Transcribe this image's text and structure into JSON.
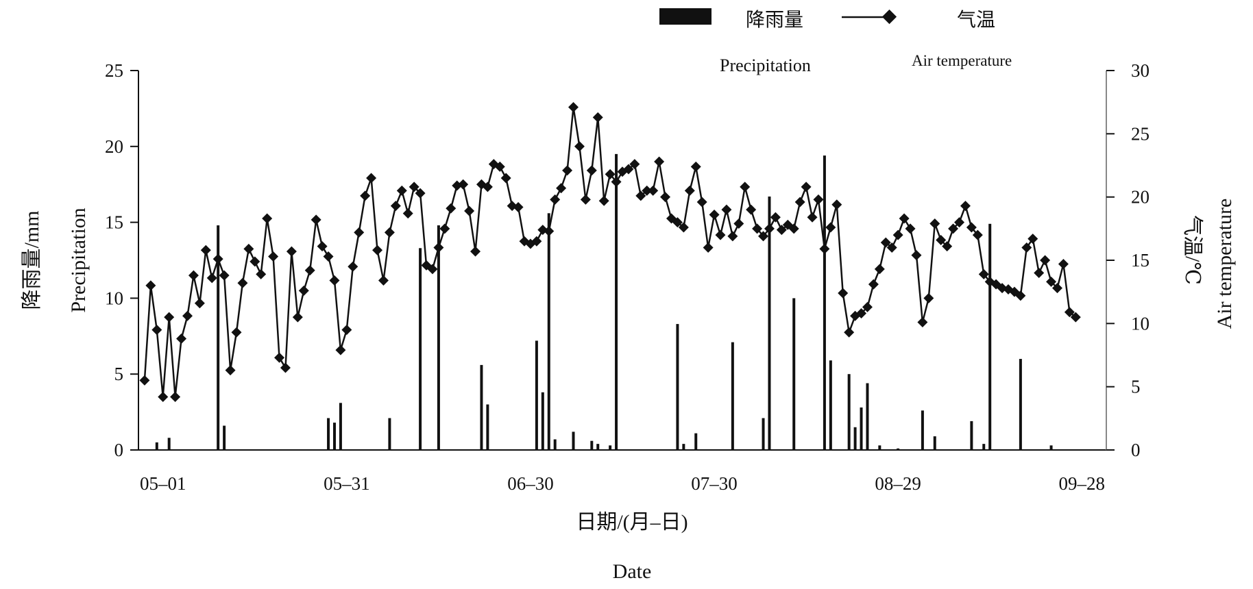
{
  "chart_data": {
    "type": "bar+line",
    "title": "",
    "legend": {
      "placement": "top-right",
      "items": [
        {
          "marker": "bar",
          "label": "降雨量",
          "sublabel": "Precipitation",
          "color": "#111111"
        },
        {
          "marker": "line-diamond",
          "label": "气温",
          "sublabel": "Air temperature",
          "color": "#111111"
        }
      ]
    },
    "x_axis": {
      "label": "日期/(月–日)",
      "label_en": "Date",
      "start": "04-27",
      "end": "09-30",
      "ticks": [
        {
          "day": 4,
          "label": "05–01"
        },
        {
          "day": 34,
          "label": "05–31"
        },
        {
          "day": 64,
          "label": "06–30"
        },
        {
          "day": 94,
          "label": "07–30"
        },
        {
          "day": 124,
          "label": "08–29"
        },
        {
          "day": 154,
          "label": "09–28"
        }
      ]
    },
    "y_left": {
      "label": "降雨量/mm",
      "label_en": "Precipitation",
      "lim": [
        0,
        25
      ],
      "ticks": [
        0,
        5,
        10,
        15,
        20,
        25
      ]
    },
    "y_right": {
      "label": "气温/℃",
      "label_en": "Air temperature",
      "lim": [
        0,
        30
      ],
      "ticks": [
        0,
        5,
        10,
        15,
        20,
        25,
        30
      ]
    },
    "series": [
      {
        "name": "降雨量",
        "kind": "bar",
        "axis": "left",
        "points": [
          [
            3,
            0.5
          ],
          [
            5,
            0.8
          ],
          [
            13,
            14.8
          ],
          [
            14,
            1.6
          ],
          [
            31,
            2.1
          ],
          [
            32,
            1.8
          ],
          [
            33,
            3.1
          ],
          [
            41,
            2.1
          ],
          [
            46,
            13.3
          ],
          [
            49,
            14.8
          ],
          [
            56,
            5.6
          ],
          [
            57,
            3.0
          ],
          [
            65,
            7.2
          ],
          [
            66,
            3.8
          ],
          [
            67,
            15.6
          ],
          [
            68,
            0.7
          ],
          [
            71,
            1.2
          ],
          [
            74,
            0.6
          ],
          [
            75,
            0.4
          ],
          [
            77,
            0.3
          ],
          [
            78,
            19.5
          ],
          [
            88,
            8.3
          ],
          [
            89,
            0.4
          ],
          [
            91,
            1.1
          ],
          [
            97,
            7.1
          ],
          [
            102,
            2.1
          ],
          [
            103,
            16.7
          ],
          [
            107,
            10.0
          ],
          [
            112,
            19.4
          ],
          [
            113,
            5.9
          ],
          [
            116,
            5.0
          ],
          [
            117,
            1.5
          ],
          [
            118,
            2.8
          ],
          [
            119,
            4.4
          ],
          [
            121,
            0.3
          ],
          [
            124,
            0.1
          ],
          [
            128,
            2.6
          ],
          [
            130,
            0.9
          ],
          [
            136,
            1.9
          ],
          [
            138,
            0.4
          ],
          [
            139,
            14.9
          ],
          [
            144,
            6.0
          ],
          [
            149,
            0.3
          ]
        ]
      },
      {
        "name": "气温",
        "kind": "line",
        "axis": "right",
        "points": [
          [
            1,
            5.5
          ],
          [
            2,
            13.0
          ],
          [
            3,
            9.5
          ],
          [
            4,
            4.2
          ],
          [
            5,
            10.5
          ],
          [
            6,
            4.2
          ],
          [
            7,
            8.8
          ],
          [
            8,
            10.6
          ],
          [
            9,
            13.8
          ],
          [
            10,
            11.6
          ],
          [
            11,
            15.8
          ],
          [
            12,
            13.6
          ],
          [
            13,
            15.1
          ],
          [
            14,
            13.8
          ],
          [
            15,
            6.3
          ],
          [
            16,
            9.3
          ],
          [
            17,
            13.2
          ],
          [
            18,
            15.9
          ],
          [
            19,
            14.9
          ],
          [
            20,
            13.9
          ],
          [
            21,
            18.3
          ],
          [
            22,
            15.3
          ],
          [
            23,
            7.3
          ],
          [
            24,
            6.5
          ],
          [
            25,
            15.7
          ],
          [
            26,
            10.5
          ],
          [
            27,
            12.6
          ],
          [
            28,
            14.2
          ],
          [
            29,
            18.2
          ],
          [
            30,
            16.1
          ],
          [
            31,
            15.3
          ],
          [
            32,
            13.4
          ],
          [
            33,
            7.9
          ],
          [
            34,
            9.5
          ],
          [
            35,
            14.5
          ],
          [
            36,
            17.2
          ],
          [
            37,
            20.1
          ],
          [
            38,
            21.5
          ],
          [
            39,
            15.8
          ],
          [
            40,
            13.4
          ],
          [
            41,
            17.2
          ],
          [
            42,
            19.3
          ],
          [
            43,
            20.5
          ],
          [
            44,
            18.7
          ],
          [
            45,
            20.8
          ],
          [
            46,
            20.3
          ],
          [
            47,
            14.6
          ],
          [
            48,
            14.3
          ],
          [
            49,
            16.0
          ],
          [
            50,
            17.5
          ],
          [
            51,
            19.1
          ],
          [
            52,
            20.9
          ],
          [
            53,
            21.0
          ],
          [
            54,
            18.9
          ],
          [
            55,
            15.7
          ],
          [
            56,
            21.0
          ],
          [
            57,
            20.8
          ],
          [
            58,
            22.6
          ],
          [
            59,
            22.4
          ],
          [
            60,
            21.5
          ],
          [
            61,
            19.3
          ],
          [
            62,
            19.2
          ],
          [
            63,
            16.5
          ],
          [
            64,
            16.3
          ],
          [
            65,
            16.5
          ],
          [
            66,
            17.4
          ],
          [
            67,
            17.3
          ],
          [
            68,
            19.8
          ],
          [
            69,
            20.7
          ],
          [
            70,
            22.1
          ],
          [
            71,
            27.1
          ],
          [
            72,
            24.0
          ],
          [
            73,
            19.8
          ],
          [
            74,
            22.1
          ],
          [
            75,
            26.3
          ],
          [
            76,
            19.7
          ],
          [
            77,
            21.8
          ],
          [
            78,
            21.2
          ],
          [
            79,
            22.0
          ],
          [
            80,
            22.2
          ],
          [
            81,
            22.6
          ],
          [
            82,
            20.1
          ],
          [
            83,
            20.5
          ],
          [
            84,
            20.5
          ],
          [
            85,
            22.8
          ],
          [
            86,
            20.0
          ],
          [
            87,
            18.3
          ],
          [
            88,
            18.0
          ],
          [
            89,
            17.6
          ],
          [
            90,
            20.5
          ],
          [
            91,
            22.4
          ],
          [
            92,
            19.6
          ],
          [
            93,
            16.0
          ],
          [
            94,
            18.6
          ],
          [
            95,
            17.0
          ],
          [
            96,
            19.0
          ],
          [
            97,
            16.9
          ],
          [
            98,
            17.9
          ],
          [
            99,
            20.8
          ],
          [
            100,
            19.0
          ],
          [
            101,
            17.5
          ],
          [
            102,
            16.9
          ],
          [
            103,
            17.5
          ],
          [
            104,
            18.4
          ],
          [
            105,
            17.4
          ],
          [
            106,
            17.8
          ],
          [
            107,
            17.5
          ],
          [
            108,
            19.6
          ],
          [
            109,
            20.8
          ],
          [
            110,
            18.4
          ],
          [
            111,
            19.8
          ],
          [
            112,
            15.9
          ],
          [
            113,
            17.6
          ],
          [
            114,
            19.4
          ],
          [
            115,
            12.4
          ],
          [
            116,
            9.3
          ],
          [
            117,
            10.6
          ],
          [
            118,
            10.8
          ],
          [
            119,
            11.3
          ],
          [
            120,
            13.1
          ],
          [
            121,
            14.3
          ],
          [
            122,
            16.4
          ],
          [
            123,
            16.0
          ],
          [
            124,
            17.0
          ],
          [
            125,
            18.3
          ],
          [
            126,
            17.5
          ],
          [
            127,
            15.4
          ],
          [
            128,
            10.1
          ],
          [
            129,
            12.0
          ],
          [
            130,
            17.9
          ],
          [
            131,
            16.6
          ],
          [
            132,
            16.1
          ],
          [
            133,
            17.5
          ],
          [
            134,
            18.0
          ],
          [
            135,
            19.3
          ],
          [
            136,
            17.6
          ],
          [
            137,
            17.0
          ],
          [
            138,
            13.9
          ],
          [
            139,
            13.3
          ],
          [
            140,
            13.1
          ],
          [
            141,
            12.8
          ],
          [
            142,
            12.7
          ],
          [
            143,
            12.5
          ],
          [
            144,
            12.2
          ],
          [
            145,
            16.0
          ],
          [
            146,
            16.7
          ],
          [
            147,
            14.0
          ],
          [
            148,
            15.0
          ],
          [
            149,
            13.3
          ],
          [
            150,
            12.8
          ],
          [
            151,
            14.7
          ],
          [
            152,
            10.9
          ],
          [
            153,
            10.5
          ]
        ]
      }
    ]
  }
}
